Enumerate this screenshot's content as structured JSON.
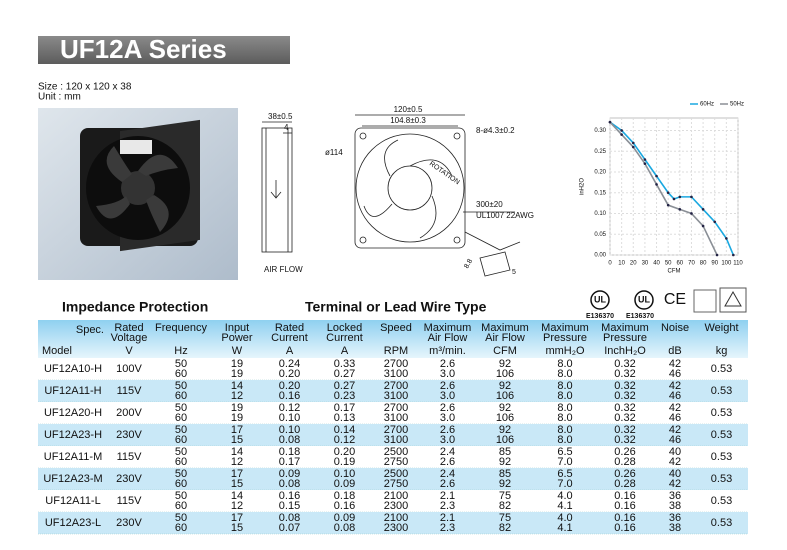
{
  "header": {
    "title": "UF12A Series",
    "size": "Size : 120 x 120 x 38",
    "unit": "Unit : mm"
  },
  "drawing": {
    "labels": [
      "120±0.5",
      "104.8±0.3",
      "38±0.5",
      "4",
      "ø114",
      "8-ø4.3±0.2",
      "ROTATION",
      "300±20",
      "UL1007 22AWG",
      "AIR FLOW",
      "8.8",
      "5"
    ]
  },
  "chart_data": {
    "type": "line",
    "x_label": "CFM",
    "y_label": "inH2O",
    "series": [
      {
        "name": "60Hz",
        "color": "#1aa8e0",
        "x": [
          0,
          10,
          20,
          30,
          40,
          50,
          55,
          60,
          70,
          80,
          90,
          100,
          106
        ],
        "values": [
          0.32,
          0.3,
          0.27,
          0.23,
          0.19,
          0.15,
          0.135,
          0.14,
          0.14,
          0.11,
          0.08,
          0.04,
          0.0
        ]
      },
      {
        "name": "50Hz",
        "color": "#8a8f96",
        "x": [
          0,
          10,
          20,
          30,
          40,
          50,
          60,
          70,
          80,
          92
        ],
        "values": [
          0.32,
          0.29,
          0.26,
          0.22,
          0.17,
          0.12,
          0.11,
          0.1,
          0.07,
          0.0
        ]
      }
    ],
    "xlim": [
      0,
      110
    ],
    "ylim": [
      0,
      0.33
    ],
    "xticks": [
      0,
      10,
      20,
      30,
      40,
      50,
      60,
      70,
      80,
      90,
      100,
      110
    ],
    "yticks": [
      {
        "value": 0,
        "label": "0.00"
      },
      {
        "value": 0.05,
        "label": "0.05"
      },
      {
        "value": 0.1,
        "label": "0.10"
      },
      {
        "value": 0.15,
        "label": "0.15"
      },
      {
        "value": 0.2,
        "label": "0.20"
      },
      {
        "value": 0.25,
        "label": "0.25"
      },
      {
        "value": 0.3,
        "label": "0.30"
      }
    ],
    "grid": true,
    "legend": "top-right"
  },
  "sections": [
    "Impedance Protection",
    "Terminal or Lead Wire Type"
  ],
  "certifications": {
    "marks": [
      "UL",
      "UL",
      "CE"
    ],
    "file_numbers": [
      "E136370",
      "E136370"
    ]
  },
  "table": {
    "columns": [
      {
        "name": [
          "Spec."
        ],
        "unit": "Model"
      },
      {
        "name": [
          "Rated",
          "Voltage"
        ],
        "unit": "V"
      },
      {
        "name": [
          "Frequency"
        ],
        "unit": "Hz"
      },
      {
        "name": [
          "Input",
          "Power"
        ],
        "unit": "W"
      },
      {
        "name": [
          "Rated",
          "Current"
        ],
        "unit": "A"
      },
      {
        "name": [
          "Locked",
          "Current"
        ],
        "unit": "A"
      },
      {
        "name": [
          "Speed"
        ],
        "unit": "RPM"
      },
      {
        "name": [
          "Maximum",
          "Air Flow"
        ],
        "unit": "m³/min."
      },
      {
        "name": [
          "Maximum",
          "Air Flow"
        ],
        "unit": "CFM"
      },
      {
        "name": [
          "Maximum",
          "Pressure"
        ],
        "unit": "mmH₂O"
      },
      {
        "name": [
          "Maximum",
          "Pressure"
        ],
        "unit": "InchH₂O"
      },
      {
        "name": [
          "Noise"
        ],
        "unit": "dB"
      },
      {
        "name": [
          "Weight"
        ],
        "unit": "kg"
      }
    ],
    "rows": [
      [
        "UF12A10-H",
        "100V",
        [
          "50",
          "60"
        ],
        [
          "19",
          "19"
        ],
        [
          "0.24",
          "0.20"
        ],
        [
          "0.33",
          "0.27"
        ],
        [
          "2700",
          "3100"
        ],
        [
          "2.6",
          "3.0"
        ],
        [
          "92",
          "106"
        ],
        [
          "8.0",
          "8.0"
        ],
        [
          "0.32",
          "0.32"
        ],
        [
          "42",
          "46"
        ],
        "0.53"
      ],
      [
        "UF12A11-H",
        "115V",
        [
          "50",
          "60"
        ],
        [
          "14",
          "12"
        ],
        [
          "0.20",
          "0.16"
        ],
        [
          "0.27",
          "0.23"
        ],
        [
          "2700",
          "3100"
        ],
        [
          "2.6",
          "3.0"
        ],
        [
          "92",
          "106"
        ],
        [
          "8.0",
          "8.0"
        ],
        [
          "0.32",
          "0.32"
        ],
        [
          "42",
          "46"
        ],
        "0.53"
      ],
      [
        "UF12A20-H",
        "200V",
        [
          "50",
          "60"
        ],
        [
          "19",
          "19"
        ],
        [
          "0.12",
          "0.10"
        ],
        [
          "0.17",
          "0.13"
        ],
        [
          "2700",
          "3100"
        ],
        [
          "2.6",
          "3.0"
        ],
        [
          "92",
          "106"
        ],
        [
          "8.0",
          "8.0"
        ],
        [
          "0.32",
          "0.32"
        ],
        [
          "42",
          "46"
        ],
        "0.53"
      ],
      [
        "UF12A23-H",
        "230V",
        [
          "50",
          "60"
        ],
        [
          "17",
          "15"
        ],
        [
          "0.10",
          "0.08"
        ],
        [
          "0.14",
          "0.12"
        ],
        [
          "2700",
          "3100"
        ],
        [
          "2.6",
          "3.0"
        ],
        [
          "92",
          "106"
        ],
        [
          "8.0",
          "8.0"
        ],
        [
          "0.32",
          "0.32"
        ],
        [
          "42",
          "46"
        ],
        "0.53"
      ],
      [
        "UF12A11-M",
        "115V",
        [
          "50",
          "60"
        ],
        [
          "14",
          "12"
        ],
        [
          "0.18",
          "0.17"
        ],
        [
          "0.20",
          "0.19"
        ],
        [
          "2500",
          "2750"
        ],
        [
          "2.4",
          "2.6"
        ],
        [
          "85",
          "92"
        ],
        [
          "6.5",
          "7.0"
        ],
        [
          "0.26",
          "0.28"
        ],
        [
          "40",
          "42"
        ],
        "0.53"
      ],
      [
        "UF12A23-M",
        "230V",
        [
          "50",
          "60"
        ],
        [
          "17",
          "15"
        ],
        [
          "0.09",
          "0.08"
        ],
        [
          "0.10",
          "0.09"
        ],
        [
          "2500",
          "2750"
        ],
        [
          "2.4",
          "2.6"
        ],
        [
          "85",
          "92"
        ],
        [
          "6.5",
          "7.0"
        ],
        [
          "0.26",
          "0.28"
        ],
        [
          "40",
          "42"
        ],
        "0.53"
      ],
      [
        "UF12A11-L",
        "115V",
        [
          "50",
          "60"
        ],
        [
          "14",
          "12"
        ],
        [
          "0.16",
          "0.15"
        ],
        [
          "0.18",
          "0.16"
        ],
        [
          "2100",
          "2300"
        ],
        [
          "2.1",
          "2.3"
        ],
        [
          "75",
          "82"
        ],
        [
          "4.0",
          "4.1"
        ],
        [
          "0.16",
          "0.16"
        ],
        [
          "36",
          "38"
        ],
        "0.53"
      ],
      [
        "UF12A23-L",
        "230V",
        [
          "50",
          "60"
        ],
        [
          "17",
          "15"
        ],
        [
          "0.08",
          "0.07"
        ],
        [
          "0.09",
          "0.08"
        ],
        [
          "2100",
          "2300"
        ],
        [
          "2.1",
          "2.3"
        ],
        [
          "75",
          "82"
        ],
        [
          "4.0",
          "4.1"
        ],
        [
          "0.16",
          "0.16"
        ],
        [
          "36",
          "38"
        ],
        "0.53"
      ]
    ]
  }
}
